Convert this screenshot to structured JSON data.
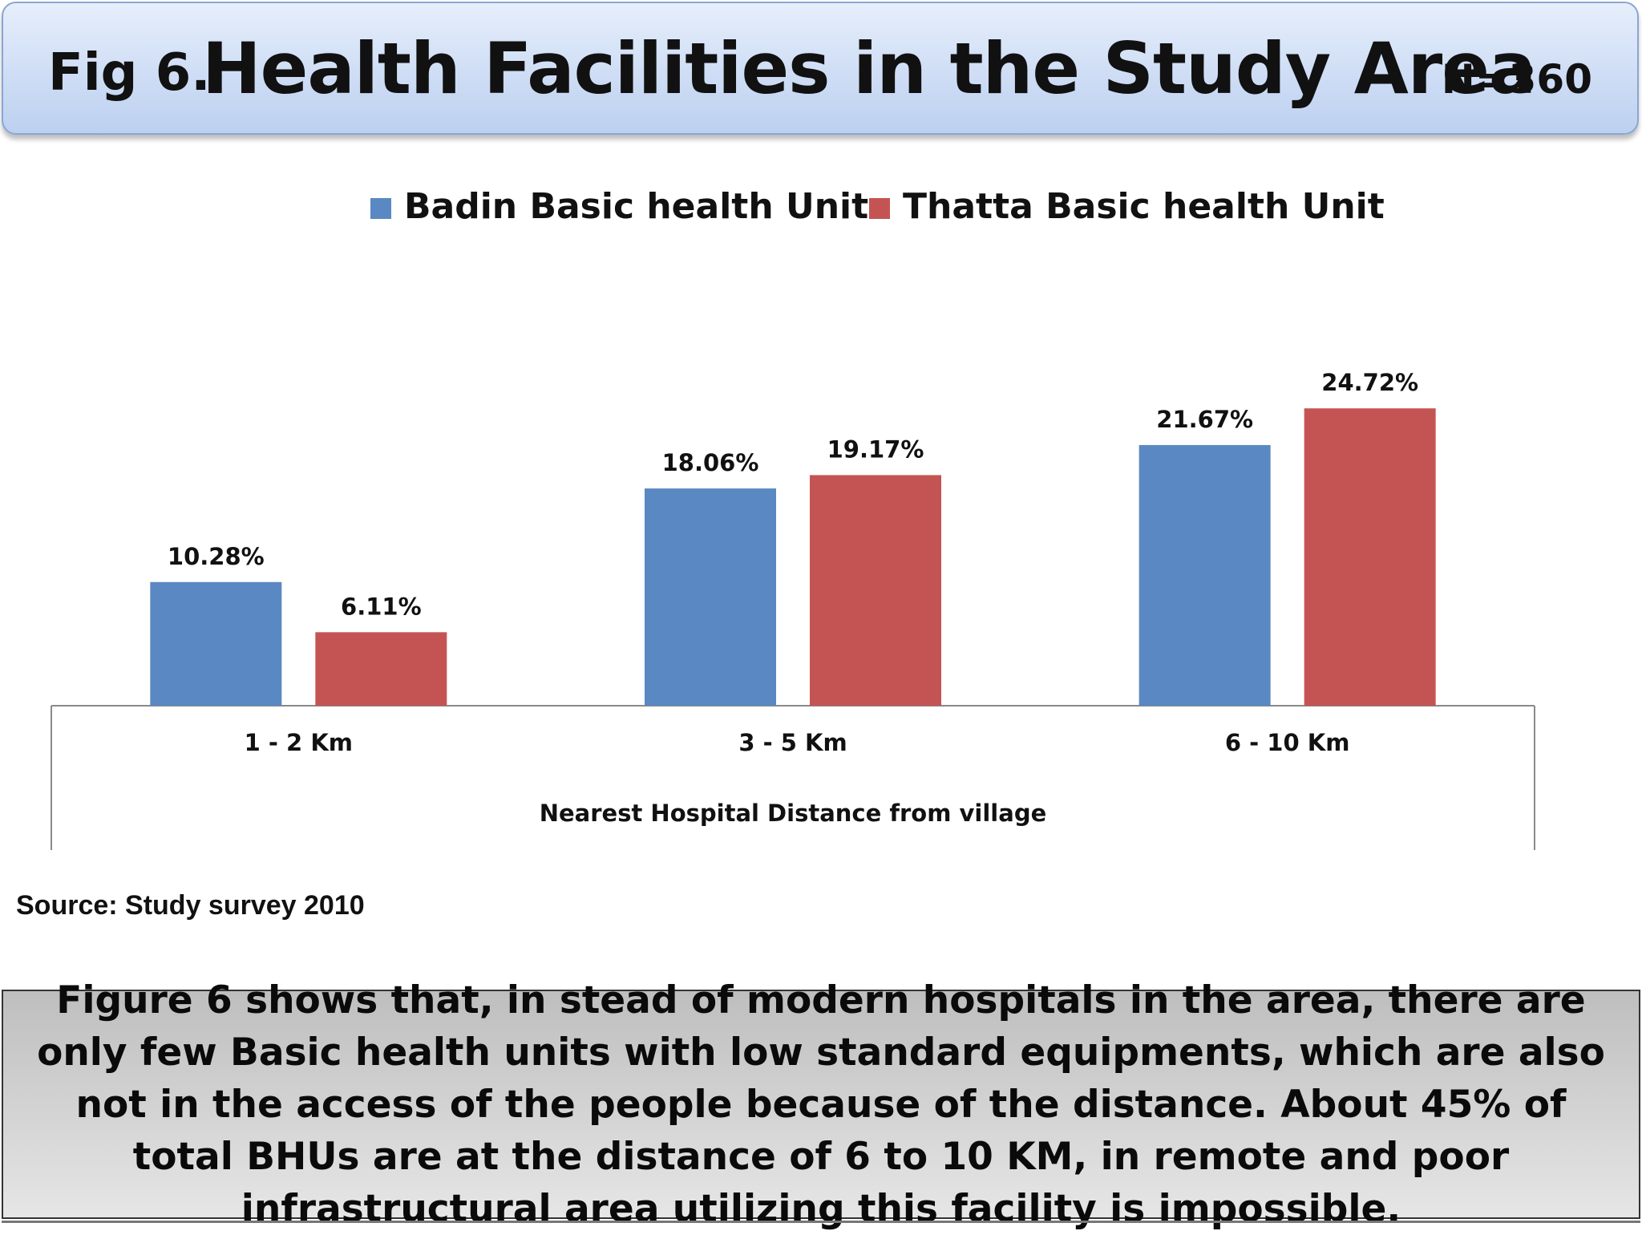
{
  "header": {
    "prefix": "Fig 6.",
    "title": "Health Facilities in the Study Area",
    "n_label": "N=360"
  },
  "chart_data": {
    "type": "bar",
    "categories": [
      "1 - 2 Km",
      "3 - 5 Km",
      "6 - 10 Km"
    ],
    "series": [
      {
        "name": "Badin Basic health Unit",
        "values": [
          10.28,
          18.06,
          21.67
        ],
        "labels": [
          "10.28%",
          "18.06%",
          "21.67%"
        ],
        "color": "#5a88c2"
      },
      {
        "name": "Thatta Basic health Unit",
        "values": [
          6.11,
          19.17,
          24.72
        ],
        "labels": [
          "6.11%",
          "19.17%",
          "24.72%"
        ],
        "color": "#c45453"
      }
    ],
    "xlabel": "Nearest Hospital Distance from village",
    "ylabel": "",
    "ylim": [
      0,
      30
    ],
    "grid": false,
    "legend": "top"
  },
  "source": "Source: Study survey 2010",
  "caption": "Figure 6 shows that, in stead of modern hospitals in the area, there are only few  Basic health units with low standard equipments, which are also not in the access of the people because of the distance. About 45% of total BHUs are at the distance of 6 to 10 KM, in remote and poor infrastructural area utilizing this facility is impossible."
}
